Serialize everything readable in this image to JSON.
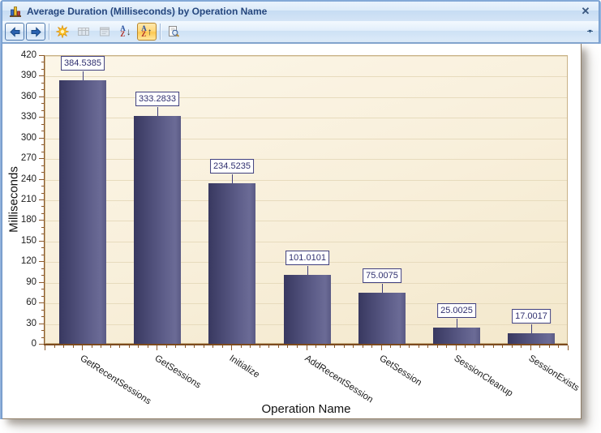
{
  "window": {
    "title": "Average Duration (Milliseconds) by Operation Name",
    "icon": "bar-chart-icon",
    "close_glyph": "✕"
  },
  "toolbar": {
    "buttons": [
      {
        "name": "back",
        "enabled": true,
        "active": false,
        "framed": true
      },
      {
        "name": "forward",
        "enabled": true,
        "active": false,
        "framed": true
      },
      {
        "name": "separator"
      },
      {
        "name": "refresh",
        "enabled": true,
        "active": false
      },
      {
        "name": "data-grid",
        "enabled": false,
        "active": false
      },
      {
        "name": "properties",
        "enabled": false,
        "active": false
      },
      {
        "name": "sort-descending",
        "enabled": true,
        "active": false
      },
      {
        "name": "sort-ascending",
        "enabled": true,
        "active": true
      },
      {
        "name": "separator"
      },
      {
        "name": "print-preview",
        "enabled": true,
        "active": false
      }
    ],
    "overflow_glyph": "▾"
  },
  "chart_data": {
    "type": "bar",
    "title": "Average Duration (Milliseconds) by Operation Name",
    "categories": [
      "GetRecentSessions",
      "GetSessions",
      "Initialize",
      "AddRecentSession",
      "GetSession",
      "SessionCleanup",
      "SessionExists"
    ],
    "values": [
      384.5385,
      333.2833,
      234.5235,
      101.0101,
      75.0075,
      25.0025,
      17.0017
    ],
    "point_labels": [
      "384.5385",
      "333.2833",
      "234.5235",
      "101.0101",
      "75.0075",
      "25.0025",
      "17.0017"
    ],
    "xlabel": "Operation Name",
    "ylabel": "Milliseconds",
    "ylim": [
      0,
      420
    ],
    "y_major_step": 30,
    "y_minor_step": 10,
    "grid": true,
    "legend_position": "none",
    "bar_color": "#4a4a78",
    "plot_background": "#f8efda",
    "label_box_border": "#3f3f7e"
  }
}
